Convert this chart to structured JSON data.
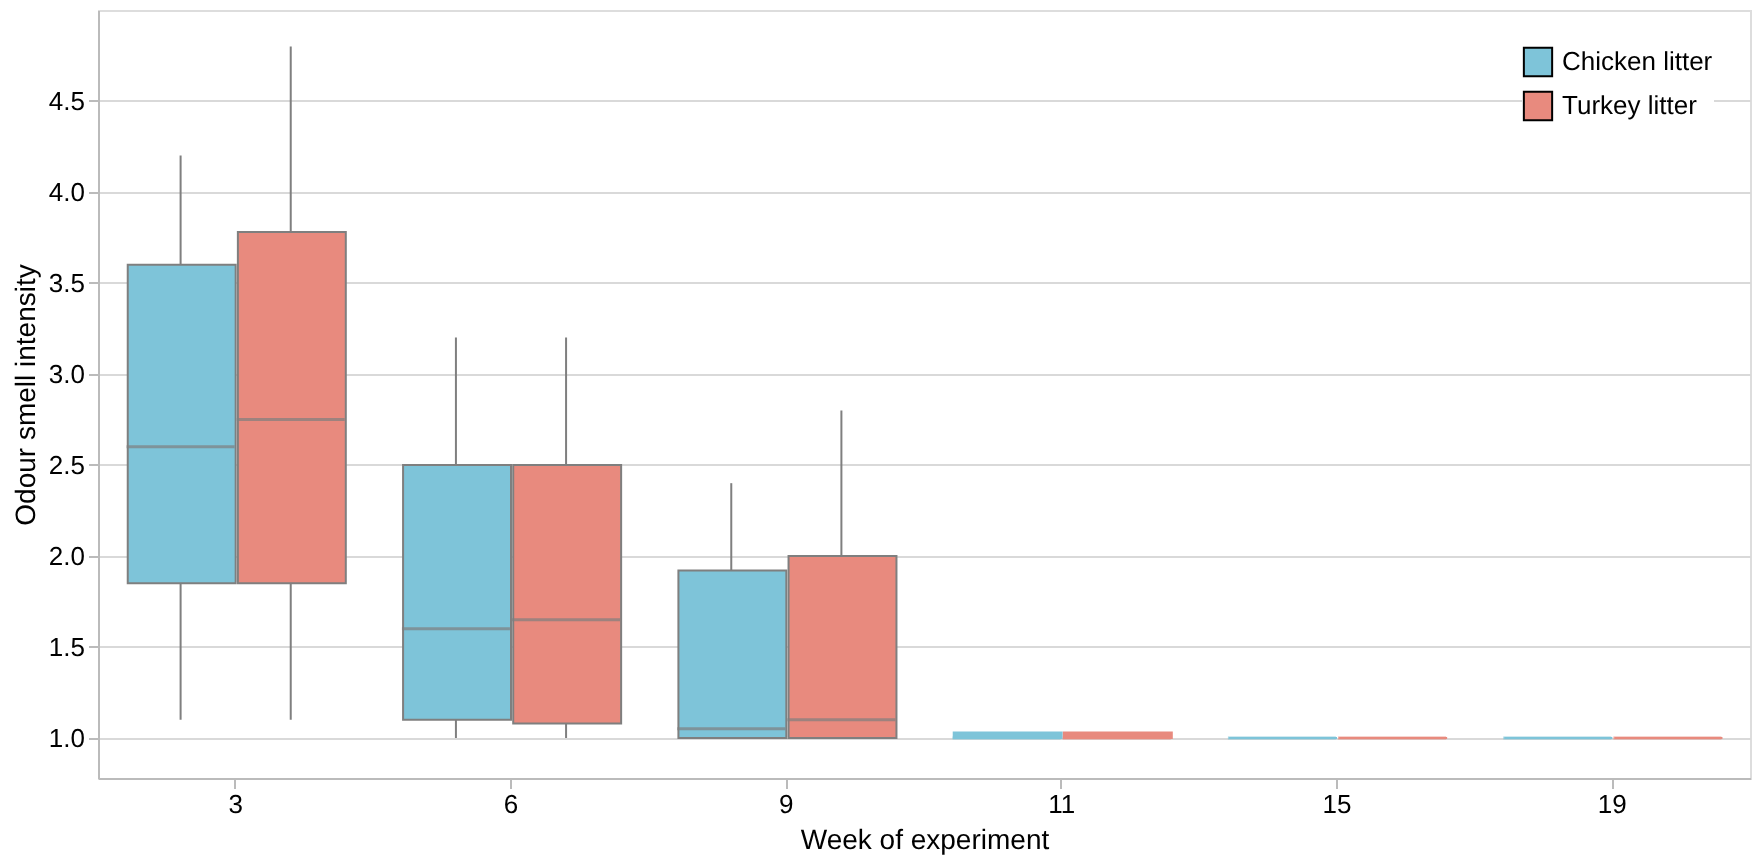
{
  "chart_data": {
    "type": "box",
    "xlabel": "Week of experiment",
    "ylabel": "Odour smell intensity",
    "categories": [
      "3",
      "6",
      "9",
      "11",
      "15",
      "19"
    ],
    "series": [
      {
        "name": "Chicken litter",
        "color": "#7ec4d9",
        "boxes": [
          {
            "low": 1.1,
            "q1": 1.85,
            "median": 2.6,
            "q3": 3.6,
            "high": 4.2
          },
          {
            "low": 1.0,
            "q1": 1.1,
            "median": 1.6,
            "q3": 2.5,
            "high": 3.2
          },
          {
            "low": 1.0,
            "q1": 1.0,
            "median": 1.05,
            "q3": 1.92,
            "high": 2.4
          },
          {
            "low": 1.0,
            "q1": 1.0,
            "median": 1.0,
            "q3": 1.03,
            "high": 1.03
          },
          {
            "low": 1.0,
            "q1": 1.0,
            "median": 1.0,
            "q3": 1.0,
            "high": 1.0
          },
          {
            "low": 1.0,
            "q1": 1.0,
            "median": 1.0,
            "q3": 1.0,
            "high": 1.0
          }
        ]
      },
      {
        "name": "Turkey litter",
        "color": "#e88a7e",
        "boxes": [
          {
            "low": 1.1,
            "q1": 1.85,
            "median": 2.75,
            "q3": 3.78,
            "high": 4.8
          },
          {
            "low": 1.0,
            "q1": 1.08,
            "median": 1.65,
            "q3": 2.5,
            "high": 3.2
          },
          {
            "low": 1.0,
            "q1": 1.0,
            "median": 1.1,
            "q3": 2.0,
            "high": 2.8
          },
          {
            "low": 1.0,
            "q1": 1.0,
            "median": 1.0,
            "q3": 1.03,
            "high": 1.03
          },
          {
            "low": 1.0,
            "q1": 1.0,
            "median": 1.0,
            "q3": 1.0,
            "high": 1.0
          },
          {
            "low": 1.0,
            "q1": 1.0,
            "median": 1.0,
            "q3": 1.0,
            "high": 1.0
          }
        ]
      }
    ],
    "ylim": [
      0.78,
      5.0
    ],
    "yticks": [
      {
        "value": 1,
        "label": "1.0"
      },
      1.5,
      {
        "value": 2,
        "label": "2.0"
      },
      2.5,
      {
        "value": 3,
        "label": "3.0"
      },
      3.5,
      {
        "value": 4,
        "label": "4.0"
      },
      4.5
    ],
    "grid": "y",
    "legend": "top right"
  }
}
